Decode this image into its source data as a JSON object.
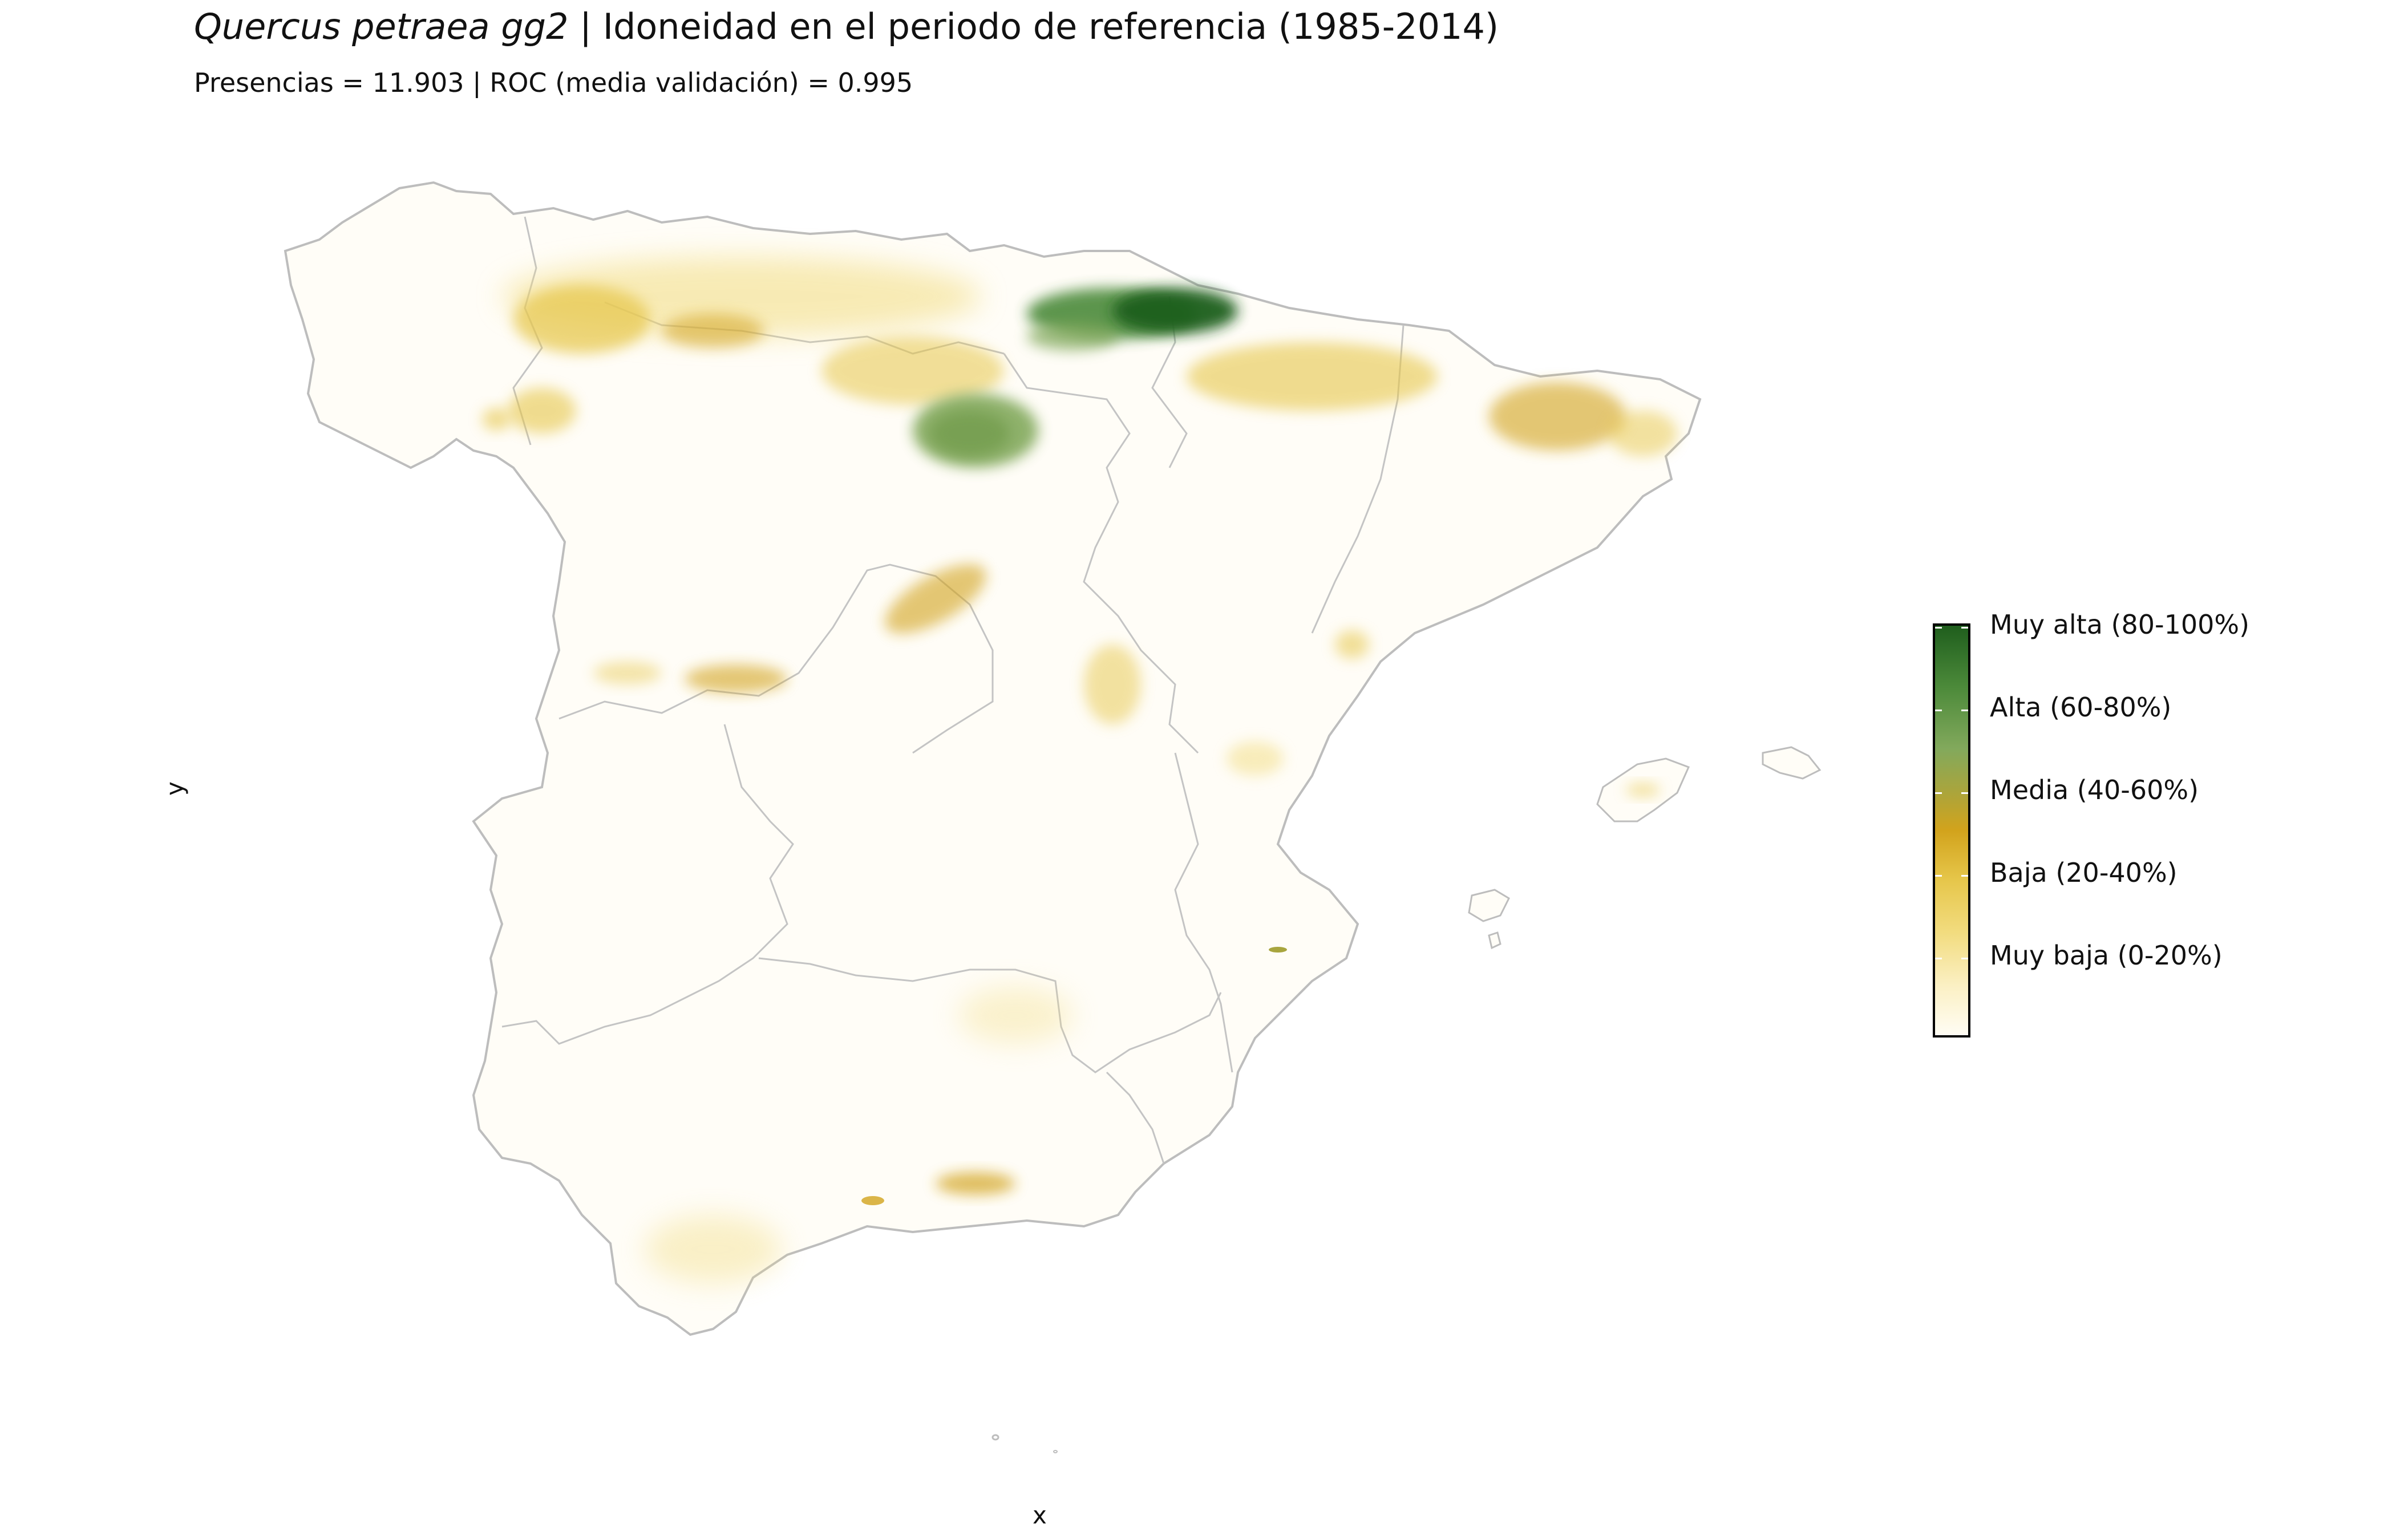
{
  "title": {
    "species": "Quercus petraea gg2",
    "rest": " | Idoneidad en el periodo de referencia (1985-2014)"
  },
  "subtitle": "Presencias = 11.903  |  ROC (media validación) = 0.995",
  "axes": {
    "x_label": "x",
    "y_label": "y"
  },
  "legend": {
    "labels": [
      "Muy alta (80-100%)",
      "Alta (60-80%)",
      "Media (40-60%)",
      "Baja (20-40%)",
      "Muy baja (0-20%)"
    ],
    "colors": [
      "#1f5e1d",
      "#82a95c",
      "#a8a53e",
      "#d2a31c",
      "#f2dc7f",
      "#fffdf4"
    ]
  },
  "map": {
    "boundary_color": "#bdbdbd",
    "land_fill": "#fffdf7",
    "regions": [
      {
        "name": "pyrenees-west",
        "class": "Muy alta (80-100%)"
      },
      {
        "name": "iberian-system-north",
        "class": "Alta (60-80%)"
      },
      {
        "name": "cantabrian-range",
        "class": "Baja (20-40%)"
      },
      {
        "name": "central-system",
        "class": "Baja (20-40%)"
      },
      {
        "name": "catalan-pyrenees",
        "class": "Baja (20-40%)"
      },
      {
        "name": "sierra-nevada",
        "class": "Baja (20-40%)"
      }
    ]
  }
}
